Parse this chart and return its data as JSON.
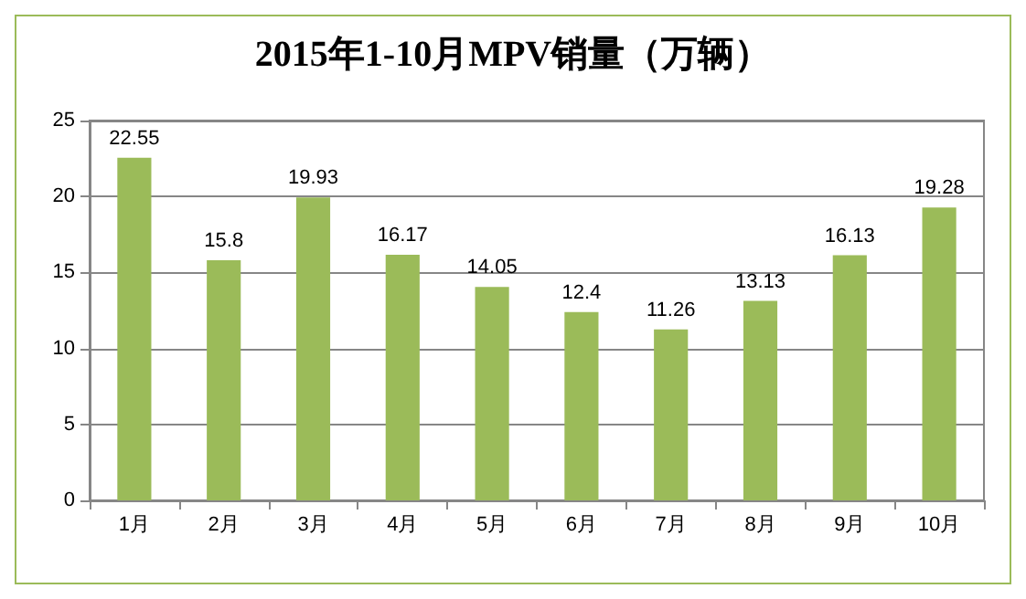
{
  "chart_data": {
    "type": "bar",
    "title": "2015年1-10月MPV销量（万辆）",
    "categories": [
      "1月",
      "2月",
      "3月",
      "4月",
      "5月",
      "6月",
      "7月",
      "8月",
      "9月",
      "10月"
    ],
    "values": [
      22.55,
      15.8,
      19.93,
      16.17,
      14.05,
      12.4,
      11.26,
      13.13,
      16.13,
      19.28
    ],
    "color": "#9bbb59",
    "ylim": [
      0,
      25
    ],
    "yticks": [
      0,
      5,
      10,
      15,
      20,
      25
    ],
    "grid": "y",
    "data_labels": true
  }
}
